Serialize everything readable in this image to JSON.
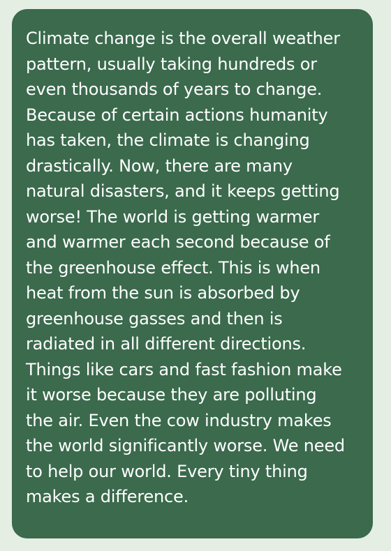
{
  "paragraph": {
    "lines": [
      "Climate change is the overall weather",
      "pattern, usually taking hundreds or",
      "even thousands of years to change.",
      "Because of certain actions humanity",
      "has taken, the climate is changing",
      "drastically. Now, there are many",
      "natural disasters, and it keeps getting",
      "worse! The world is getting warmer",
      "and warmer each second because of",
      "the greenhouse effect. This is when",
      "heat from the sun is absorbed by",
      "greenhouse gasses and then is",
      "radiated in all different directions.",
      "Things like cars and fast fashion make",
      "it worse because they are polluting",
      "the air. Even the cow industry makes",
      "the world significantly worse. We need",
      "to help our world. Every tiny thing",
      "makes a difference."
    ]
  }
}
